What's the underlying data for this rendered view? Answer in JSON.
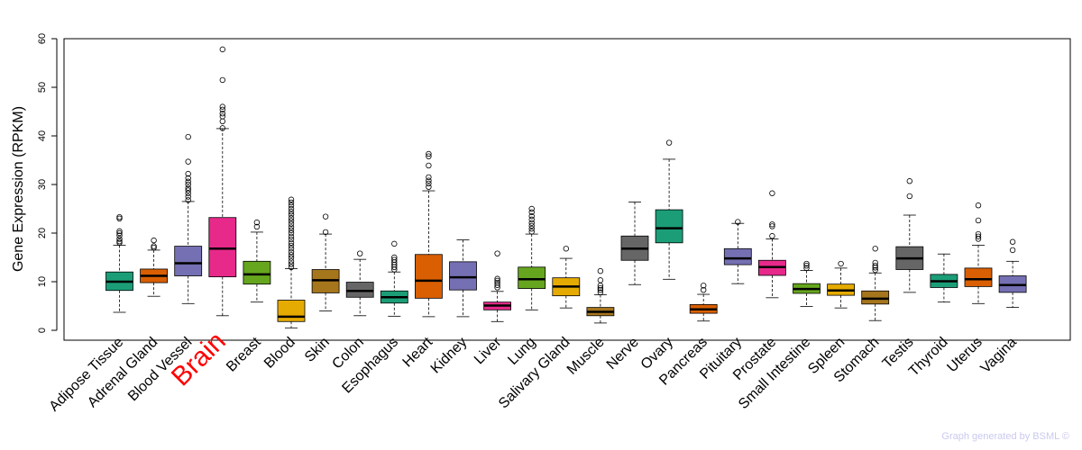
{
  "chart_data": {
    "type": "boxplot",
    "ylabel": "Gene Expression (RPKM)",
    "xlabel": "",
    "ylim": [
      0,
      60
    ],
    "yticks": [
      0,
      10,
      20,
      30,
      40,
      50,
      60
    ],
    "highlight": "Brain",
    "credit": "Graph generated by BSML ©",
    "categories": [
      {
        "name": "Adipose Tissue",
        "color": "#1b9e77",
        "min": 3.7,
        "q1": 8.2,
        "median": 10.0,
        "q3": 12.0,
        "max": 17.5,
        "outliers": [
          18.0,
          18.3,
          18.8,
          19.5,
          20.0,
          20.4,
          23.0,
          23.3
        ]
      },
      {
        "name": "Adrenal Gland",
        "color": "#d95f02",
        "min": 7.0,
        "q1": 9.8,
        "median": 11.2,
        "q3": 12.6,
        "max": 16.5,
        "outliers": [
          17.0,
          17.3,
          18.5
        ]
      },
      {
        "name": "Blood Vessel",
        "color": "#7570b3",
        "min": 5.5,
        "q1": 11.2,
        "median": 13.8,
        "q3": 17.3,
        "max": 26.5,
        "outliers": [
          26.8,
          27.5,
          28.2,
          28.8,
          29.3,
          30.0,
          30.6,
          31.3,
          32.2,
          34.7,
          39.8
        ]
      },
      {
        "name": "Brain",
        "color": "#e7298a",
        "min": 3.0,
        "q1": 11.0,
        "median": 16.8,
        "q3": 23.2,
        "max": 41.5,
        "outliers": [
          41.6,
          43.0,
          44.0,
          44.6,
          45.4,
          46.0,
          51.5,
          57.8
        ]
      },
      {
        "name": "Breast",
        "color": "#66a61e",
        "min": 5.8,
        "q1": 9.5,
        "median": 11.5,
        "q3": 14.2,
        "max": 20.2,
        "outliers": [
          21.3,
          22.2
        ]
      },
      {
        "name": "Blood",
        "color": "#e6ab02",
        "min": 0.5,
        "q1": 1.8,
        "median": 2.8,
        "q3": 6.2,
        "max": 12.7,
        "outliers": [
          13.0,
          13.6,
          14.2,
          14.9,
          15.5,
          16.1,
          16.8,
          17.4,
          18.0,
          18.7,
          19.3,
          20.0,
          20.6,
          21.2,
          21.9,
          22.5,
          23.1,
          23.8,
          24.4,
          25.0,
          25.7,
          26.3,
          26.9
        ]
      },
      {
        "name": "Skin",
        "color": "#a6761d",
        "min": 4.0,
        "q1": 7.7,
        "median": 10.3,
        "q3": 12.5,
        "max": 19.8,
        "outliers": [
          20.2,
          23.4
        ]
      },
      {
        "name": "Colon",
        "color": "#666666",
        "min": 3.0,
        "q1": 6.8,
        "median": 8.1,
        "q3": 9.9,
        "max": 14.6,
        "outliers": [
          15.8
        ]
      },
      {
        "name": "Esophagus",
        "color": "#1b9e77",
        "min": 2.9,
        "q1": 5.6,
        "median": 6.8,
        "q3": 8.1,
        "max": 12.0,
        "outliers": [
          12.5,
          13.0,
          13.5,
          14.0,
          14.5,
          15.0,
          17.8
        ]
      },
      {
        "name": "Heart",
        "color": "#d95f02",
        "min": 2.8,
        "q1": 6.6,
        "median": 10.2,
        "q3": 15.6,
        "max": 28.7,
        "outliers": [
          29.5,
          30.2,
          30.8,
          31.5,
          33.9,
          35.8,
          36.3
        ]
      },
      {
        "name": "Kidney",
        "color": "#7570b3",
        "min": 2.8,
        "q1": 8.3,
        "median": 10.9,
        "q3": 14.1,
        "max": 18.6,
        "outliers": []
      },
      {
        "name": "Liver",
        "color": "#e7298a",
        "min": 1.8,
        "q1": 4.2,
        "median": 5.1,
        "q3": 5.8,
        "max": 8.0,
        "outliers": [
          8.8,
          9.3,
          9.8,
          10.2,
          10.6,
          15.8
        ]
      },
      {
        "name": "Lung",
        "color": "#66a61e",
        "min": 4.2,
        "q1": 8.6,
        "median": 10.5,
        "q3": 13.0,
        "max": 19.8,
        "outliers": [
          20.3,
          20.9,
          21.5,
          22.1,
          22.8,
          23.5,
          24.3,
          25.0
        ]
      },
      {
        "name": "Salivary Gland",
        "color": "#e6ab02",
        "min": 4.6,
        "q1": 7.1,
        "median": 9.0,
        "q3": 10.8,
        "max": 14.8,
        "outliers": [
          16.8
        ]
      },
      {
        "name": "Muscle",
        "color": "#a6761d",
        "min": 1.5,
        "q1": 3.0,
        "median": 3.8,
        "q3": 4.7,
        "max": 7.3,
        "outliers": [
          7.8,
          8.3,
          8.7,
          9.2,
          10.3,
          12.2
        ]
      },
      {
        "name": "Nerve",
        "color": "#666666",
        "min": 9.4,
        "q1": 14.4,
        "median": 16.8,
        "q3": 19.4,
        "max": 26.4,
        "outliers": []
      },
      {
        "name": "Ovary",
        "color": "#1b9e77",
        "min": 10.5,
        "q1": 18.0,
        "median": 21.0,
        "q3": 24.8,
        "max": 35.2,
        "outliers": [
          38.6
        ]
      },
      {
        "name": "Pancreas",
        "color": "#d95f02",
        "min": 1.9,
        "q1": 3.5,
        "median": 4.3,
        "q3": 5.3,
        "max": 7.4,
        "outliers": [
          8.3,
          9.2
        ]
      },
      {
        "name": "Pituitary",
        "color": "#7570b3",
        "min": 9.6,
        "q1": 13.5,
        "median": 14.8,
        "q3": 16.8,
        "max": 22.0,
        "outliers": [
          22.3
        ]
      },
      {
        "name": "Prostate",
        "color": "#e7298a",
        "min": 6.7,
        "q1": 11.3,
        "median": 13.0,
        "q3": 14.4,
        "max": 18.8,
        "outliers": [
          19.4,
          21.4,
          21.8,
          28.2
        ]
      },
      {
        "name": "Small Intestine",
        "color": "#66a61e",
        "min": 4.9,
        "q1": 7.6,
        "median": 8.5,
        "q3": 9.6,
        "max": 12.3,
        "outliers": [
          12.8,
          13.3,
          13.7
        ]
      },
      {
        "name": "Spleen",
        "color": "#e6ab02",
        "min": 4.6,
        "q1": 7.2,
        "median": 8.2,
        "q3": 9.5,
        "max": 12.8,
        "outliers": [
          13.7
        ]
      },
      {
        "name": "Stomach",
        "color": "#a6761d",
        "min": 2.0,
        "q1": 5.4,
        "median": 6.5,
        "q3": 8.1,
        "max": 11.8,
        "outliers": [
          12.4,
          12.9,
          13.3,
          13.9,
          16.8
        ]
      },
      {
        "name": "Testis",
        "color": "#666666",
        "min": 7.8,
        "q1": 12.5,
        "median": 14.8,
        "q3": 17.2,
        "max": 23.7,
        "outliers": [
          27.6,
          30.7
        ]
      },
      {
        "name": "Thyroid",
        "color": "#1b9e77",
        "min": 5.8,
        "q1": 8.8,
        "median": 10.1,
        "q3": 11.5,
        "max": 15.7,
        "outliers": []
      },
      {
        "name": "Uterus",
        "color": "#d95f02",
        "min": 5.5,
        "q1": 9.0,
        "median": 10.5,
        "q3": 12.8,
        "max": 17.5,
        "outliers": [
          18.8,
          19.3,
          19.8,
          22.6,
          25.7
        ]
      },
      {
        "name": "Vagina",
        "color": "#7570b3",
        "min": 4.7,
        "q1": 7.8,
        "median": 9.3,
        "q3": 11.2,
        "max": 14.2,
        "outliers": [
          16.5,
          18.2
        ]
      }
    ]
  }
}
